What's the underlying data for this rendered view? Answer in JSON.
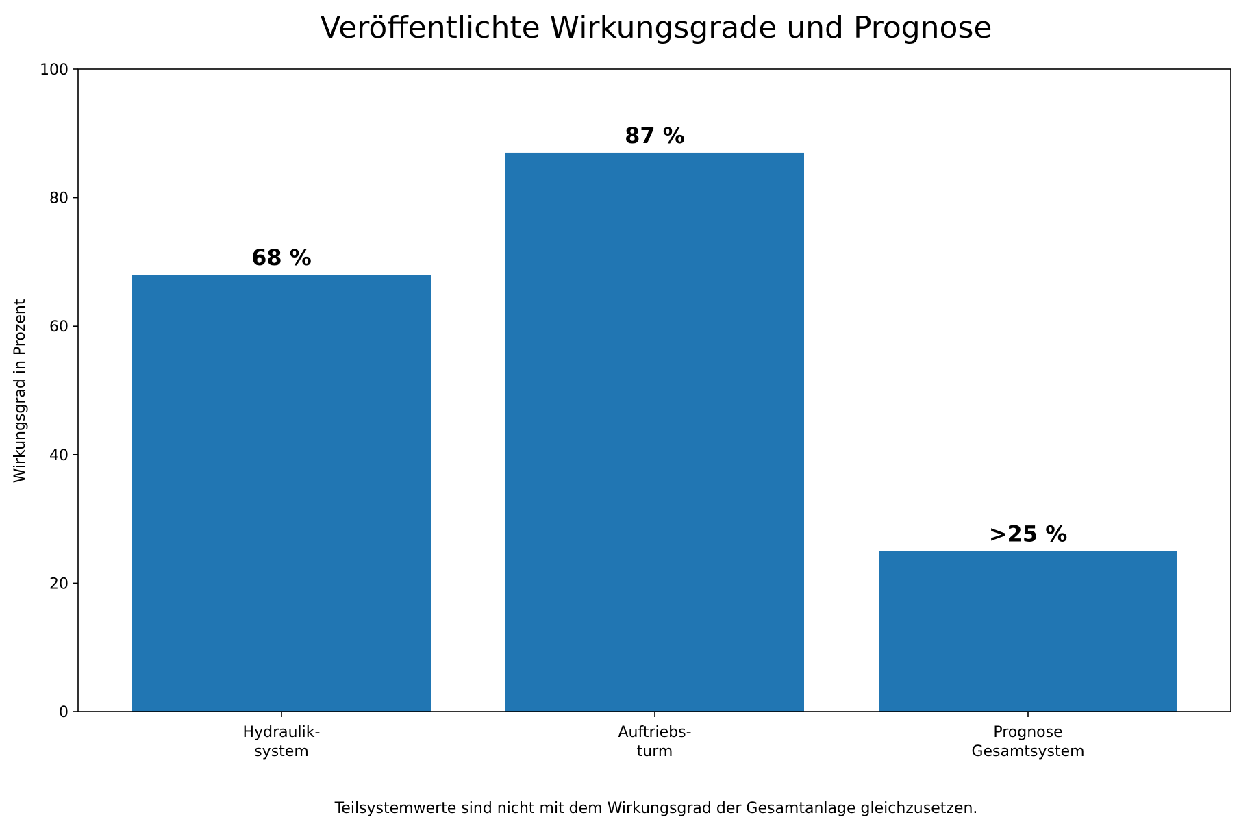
{
  "chart_data": {
    "type": "bar",
    "title": "Veröffentlichte Wirkungsgrade und Prognose",
    "xlabel": "",
    "ylabel": "Wirkungsgrad in Prozent",
    "ylim": [
      0,
      100
    ],
    "yticks": [
      0,
      20,
      40,
      60,
      80,
      100
    ],
    "categories": [
      "Hydraulik-\nsystem",
      "Auftriebs-\nturm",
      "Prognose\nGesamtsystem"
    ],
    "values": [
      68,
      87,
      25
    ],
    "data_labels": [
      "68 %",
      "87 %",
      ">25 %"
    ],
    "bar_color": "#2176b3",
    "grid": false,
    "legend": "none"
  },
  "footnote": "Teilsystemwerte sind nicht mit dem Wirkungsgrad der Gesamtanlage gleichzusetzen."
}
